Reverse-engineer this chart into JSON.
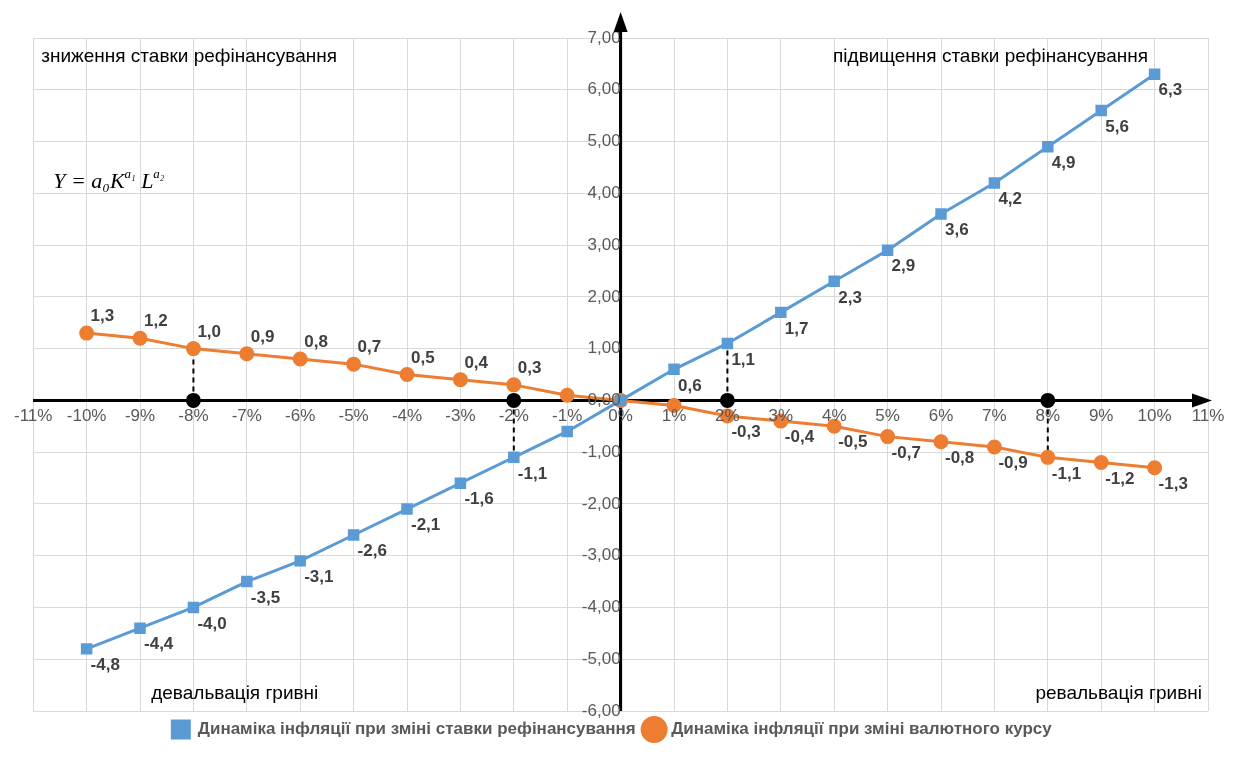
{
  "chart_data": {
    "type": "line",
    "x": [
      -10,
      -9,
      -8,
      -7,
      -6,
      -5,
      -4,
      -3,
      -2,
      -1,
      0,
      1,
      2,
      3,
      4,
      5,
      6,
      7,
      8,
      9,
      10
    ],
    "xlim": [
      -11,
      11
    ],
    "xticks": [
      {
        "value": -11,
        "label": "-11%"
      },
      {
        "value": -10,
        "label": "-10%"
      },
      {
        "value": -9,
        "label": "-9%"
      },
      {
        "value": -8,
        "label": "-8%"
      },
      {
        "value": -7,
        "label": "-7%"
      },
      {
        "value": -6,
        "label": "-6%"
      },
      {
        "value": -5,
        "label": "-5%"
      },
      {
        "value": -4,
        "label": "-4%"
      },
      {
        "value": -3,
        "label": "-3%"
      },
      {
        "value": -2,
        "label": "-2%"
      },
      {
        "value": -1,
        "label": "-1%"
      },
      {
        "value": 0,
        "label": "0%"
      },
      {
        "value": 1,
        "label": "1%"
      },
      {
        "value": 2,
        "label": "2%"
      },
      {
        "value": 3,
        "label": "3%"
      },
      {
        "value": 4,
        "label": "4%"
      },
      {
        "value": 5,
        "label": "5%"
      },
      {
        "value": 6,
        "label": "6%"
      },
      {
        "value": 7,
        "label": "7%"
      },
      {
        "value": 8,
        "label": "8%"
      },
      {
        "value": 9,
        "label": "9%"
      },
      {
        "value": 10,
        "label": "10%"
      },
      {
        "value": 11,
        "label": "11%"
      }
    ],
    "ylim": [
      -6,
      7
    ],
    "yticks": [
      {
        "value": -6,
        "label": "-6,00"
      },
      {
        "value": -5,
        "label": "-5,00"
      },
      {
        "value": -4,
        "label": "-4,00"
      },
      {
        "value": -3,
        "label": "-3,00"
      },
      {
        "value": -2,
        "label": "-2,00"
      },
      {
        "value": -1,
        "label": "-1,00"
      },
      {
        "value": 0,
        "label": "0,00"
      },
      {
        "value": 1,
        "label": "1,00"
      },
      {
        "value": 2,
        "label": "2,00"
      },
      {
        "value": 3,
        "label": "3,00"
      },
      {
        "value": 4,
        "label": "4,00"
      },
      {
        "value": 5,
        "label": "5,00"
      },
      {
        "value": 6,
        "label": "6,00"
      },
      {
        "value": 7,
        "label": "7,00"
      }
    ],
    "grid": true,
    "legend": "bottom",
    "series": [
      {
        "name": "Динаміка інфляції при зміні ставки рефінансування",
        "color": "#5b9bd5",
        "marker": "square",
        "values": [
          -4.8,
          -4.4,
          -4.0,
          -3.5,
          -3.1,
          -2.6,
          -2.1,
          -1.6,
          -1.1,
          -0.6,
          0,
          0.6,
          1.1,
          1.7,
          2.3,
          2.9,
          3.6,
          4.2,
          4.9,
          5.6,
          6.3
        ],
        "value_labels": [
          "-4,8",
          "-4,4",
          "-4,0",
          "-3,5",
          "-3,1",
          "-2,6",
          "-2,1",
          "-1,6",
          "-1,1",
          null,
          null,
          "0,6",
          "1,1",
          "1,7",
          "2,3",
          "2,9",
          "3,6",
          "4,2",
          "4,9",
          "5,6",
          "6,3"
        ]
      },
      {
        "name": "Динаміка інфляції при зміні валютного курсу",
        "color": "#ed7d31",
        "marker": "circle",
        "values": [
          1.3,
          1.2,
          1.0,
          0.9,
          0.8,
          0.7,
          0.5,
          0.4,
          0.3,
          0.1,
          0,
          -0.1,
          -0.3,
          -0.4,
          -0.5,
          -0.7,
          -0.8,
          -0.9,
          -1.1,
          -1.2,
          -1.3
        ],
        "value_labels": [
          "1,3",
          "1,2",
          "1,0",
          "0,9",
          "0,8",
          "0,7",
          "0,5",
          "0,4",
          "0,3",
          null,
          null,
          null,
          "-0,3",
          "-0,4",
          "-0,5",
          "-0,7",
          "-0,8",
          "-0,9",
          "-1,1",
          "-1,2",
          "-1,3"
        ]
      },
      {
        "type": "line",
        "color": "#000000",
        "marker": "none",
        "line_style": "dashed",
        "x": [
          -8,
          -8
        ],
        "values": [
          0,
          1.0
        ]
      },
      {
        "type": "line",
        "color": "#000000",
        "marker": "none",
        "line_style": "dashed",
        "x": [
          -2,
          -2
        ],
        "values": [
          0,
          -1.1
        ]
      },
      {
        "type": "line",
        "color": "#000000",
        "marker": "none",
        "line_style": "dashed",
        "x": [
          2,
          2
        ],
        "values": [
          0,
          1.1
        ]
      },
      {
        "type": "line",
        "color": "#000000",
        "marker": "none",
        "line_style": "dashed",
        "x": [
          8,
          8
        ],
        "values": [
          0,
          -1.1
        ]
      },
      {
        "type": "scatter",
        "color": "#000000",
        "marker": "circle",
        "x": [
          -8,
          -2,
          2,
          8
        ],
        "values": [
          0,
          0,
          0,
          0
        ]
      }
    ],
    "annotations": [
      "зниження ставки рефінансування",
      "підвищення ставки рефінансування",
      "девальвація гривні",
      "ревальвація гривні",
      "Y = a₀K$^{a₁}$ L$^{a₂}$"
    ]
  }
}
